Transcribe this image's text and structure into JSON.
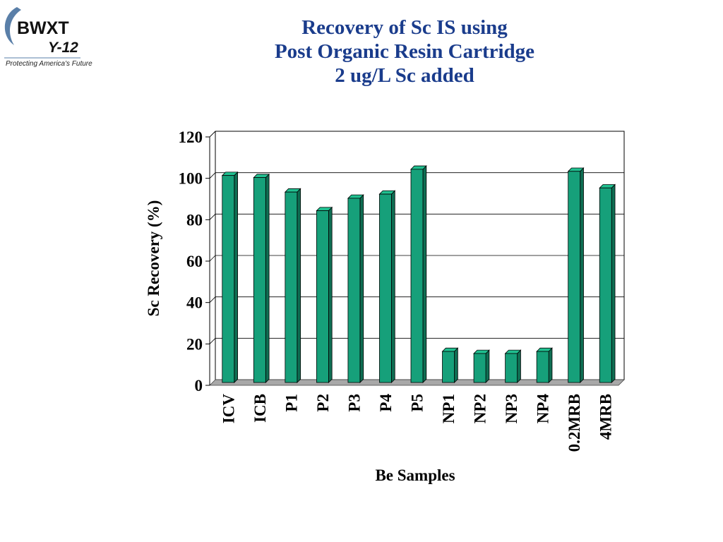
{
  "logo": {
    "brand": "BWXT",
    "sub": "Y-12",
    "tagline": "Protecting America's Future",
    "colors": {
      "swoosh": "#5a7fa8",
      "text": "#111111",
      "accent": "#e0a526"
    }
  },
  "slide": {
    "title_lines": [
      "Recovery of Sc IS using",
      "Post Organic Resin Cartridge",
      "2 ug/L Sc added"
    ],
    "title_color": "#1a3c8c"
  },
  "chart_data": {
    "type": "bar",
    "title": "",
    "xlabel": "Be Samples",
    "ylabel": "Sc Recovery (%)",
    "categories": [
      "ICV",
      "ICB",
      "P1",
      "P2",
      "P3",
      "P4",
      "P5",
      "NP1",
      "NP2",
      "NP3",
      "NP4",
      "0.2MRB",
      "4MRB"
    ],
    "values": [
      100,
      99,
      92,
      83,
      89,
      91,
      103,
      15,
      14,
      14,
      15,
      102,
      94
    ],
    "ylim": [
      0,
      120
    ],
    "yticks": [
      "0",
      "20",
      "40",
      "60",
      "80",
      "100",
      "120"
    ],
    "grid": true,
    "legend": "none",
    "bar_color": "#16a07a"
  }
}
